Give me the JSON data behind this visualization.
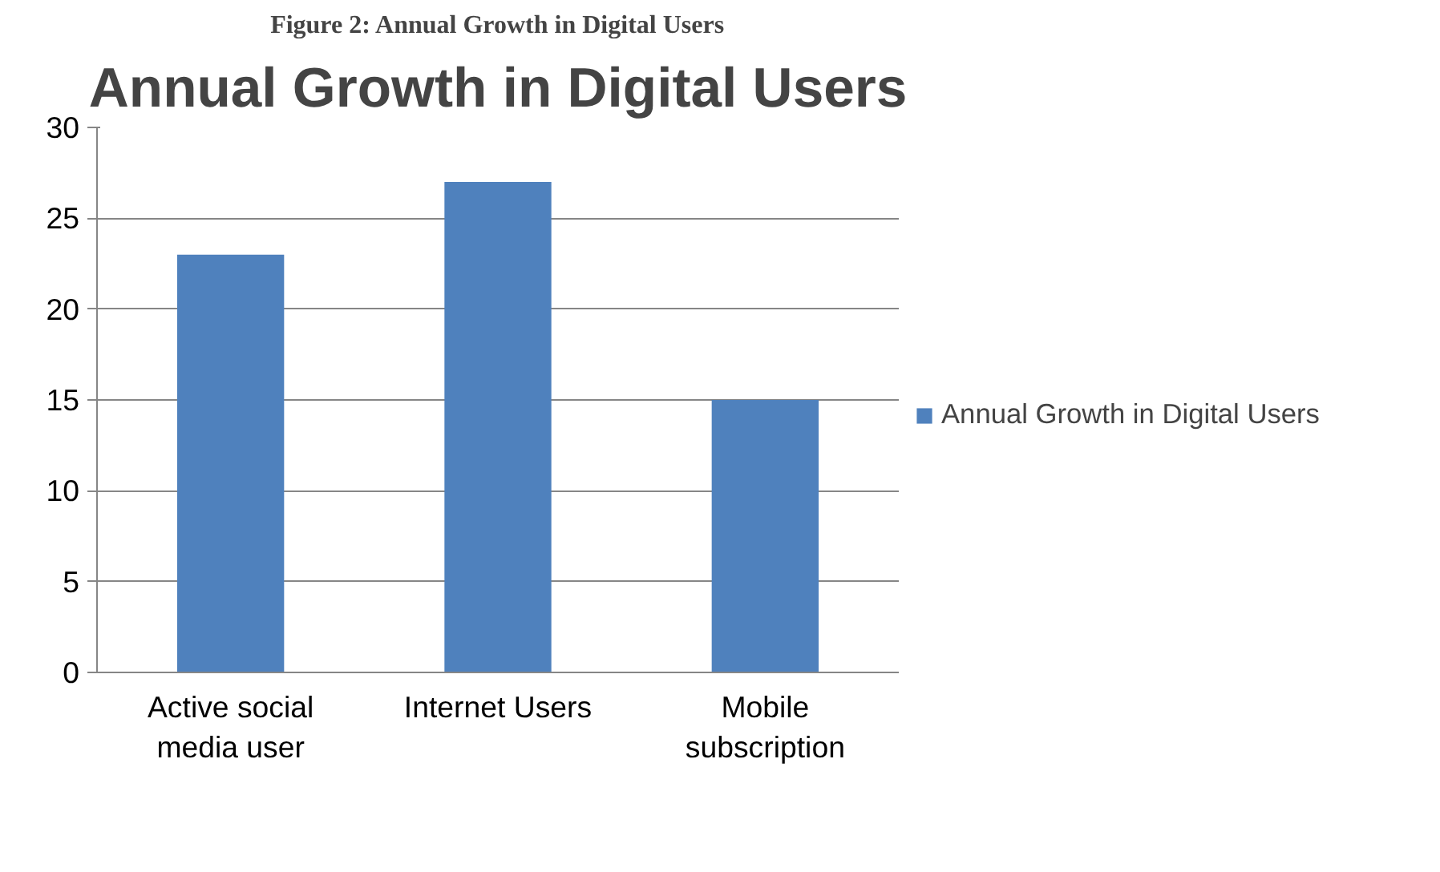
{
  "chart_data": {
    "type": "bar",
    "title": "Annual Growth in Digital Users",
    "annotations": [
      "Figure 2: Annual Growth in Digital Users"
    ],
    "categories": [
      "Active social media user",
      "Internet Users",
      "Mobile subscription"
    ],
    "series": [
      {
        "name": "Annual Growth in Digital Users",
        "color": "#4f81bd",
        "values": [
          23,
          27,
          15
        ]
      }
    ],
    "ylim": [
      0,
      30
    ],
    "yticks": [
      0,
      5,
      10,
      15,
      20,
      25,
      30
    ],
    "grid": "y",
    "legend": "right"
  }
}
